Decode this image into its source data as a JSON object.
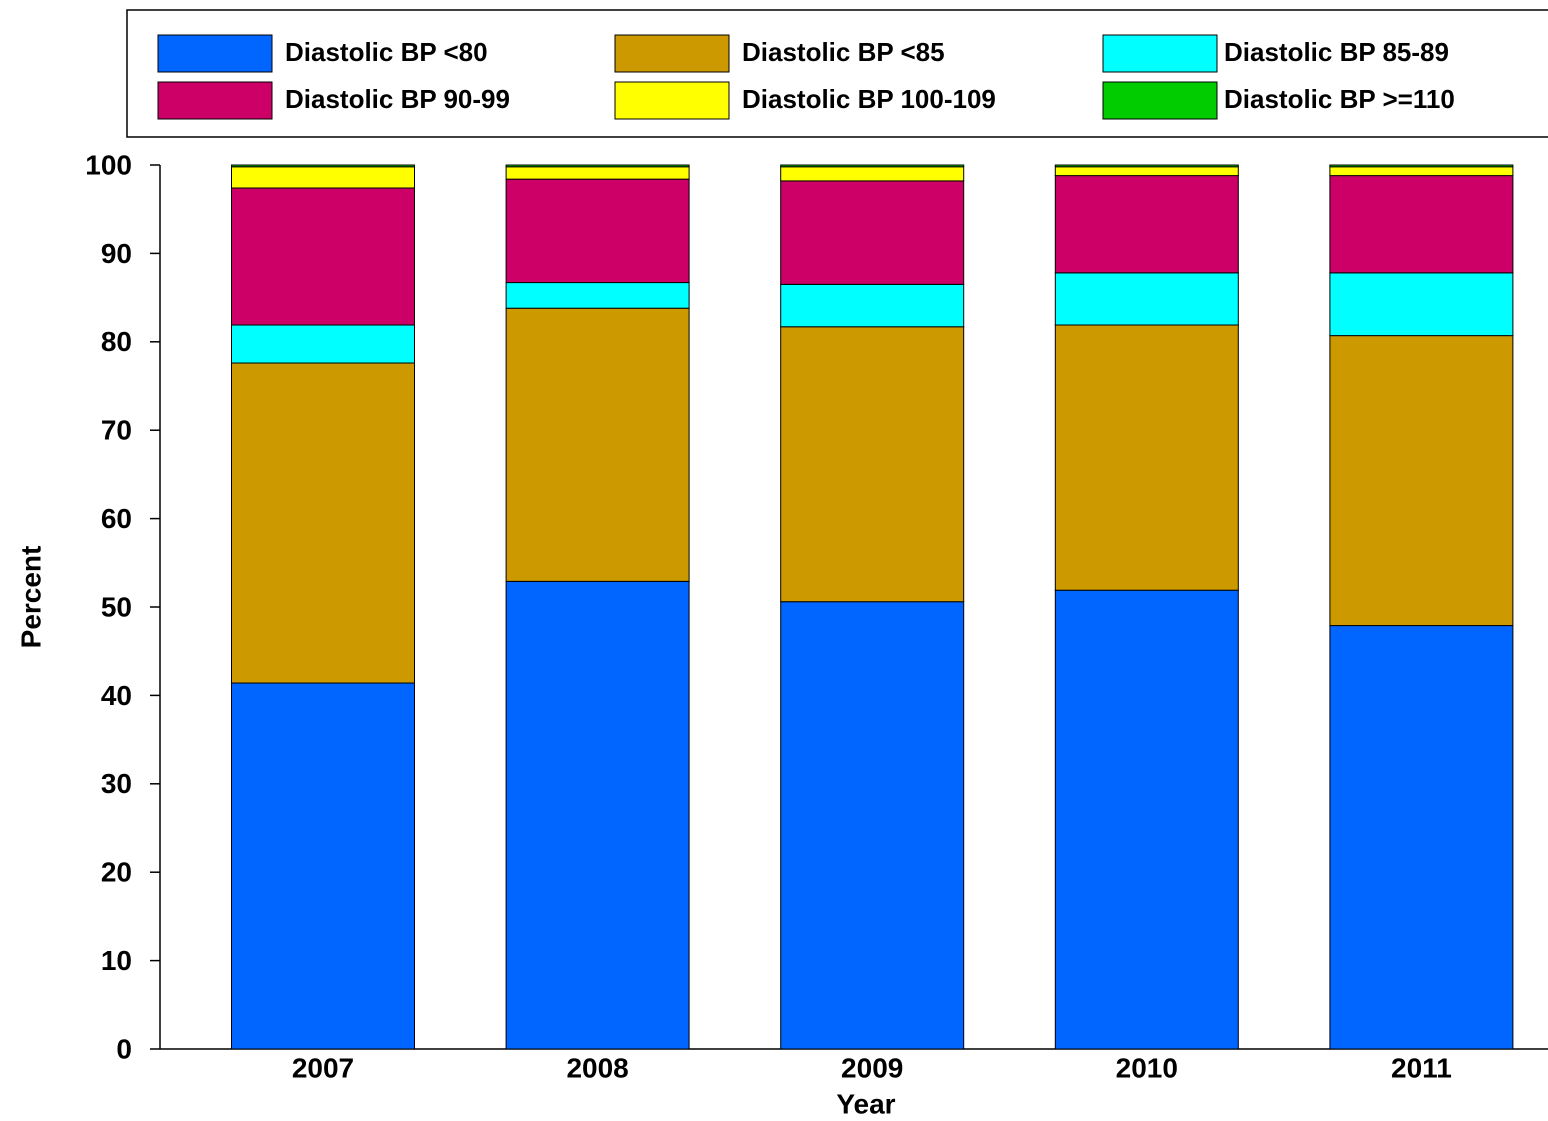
{
  "chart_data": {
    "type": "stacked_bar",
    "x_label": "Year",
    "y_label": "Percent",
    "categories": [
      "2007",
      "2008",
      "2009",
      "2010",
      "2011"
    ],
    "series": [
      {
        "name": "Diastolic BP <80",
        "color": "#0066ff",
        "values": [
          41.4,
          52.9,
          50.6,
          51.9,
          47.9
        ]
      },
      {
        "name": "Diastolic BP <85",
        "color": "#cc9900",
        "values": [
          36.2,
          30.9,
          31.1,
          30.0,
          32.8
        ]
      },
      {
        "name": "Diastolic BP 85-89",
        "color": "#00ffff",
        "values": [
          4.3,
          2.9,
          4.8,
          5.9,
          7.1
        ]
      },
      {
        "name": "Diastolic BP 90-99",
        "color": "#cc0066",
        "values": [
          15.5,
          11.7,
          11.7,
          11.0,
          11.0
        ]
      },
      {
        "name": "Diastolic BP 100-109",
        "color": "#ffff00",
        "values": [
          2.4,
          1.4,
          1.6,
          1.0,
          1.0
        ]
      },
      {
        "name": "Diastolic BP >=110",
        "color": "#00cc00",
        "values": [
          0.2,
          0.2,
          0.2,
          0.2,
          0.2
        ]
      }
    ],
    "ylim": [
      0,
      100
    ],
    "yticks": [
      0,
      10,
      20,
      30,
      40,
      50,
      60,
      70,
      80,
      90,
      100
    ],
    "legend": "top"
  }
}
